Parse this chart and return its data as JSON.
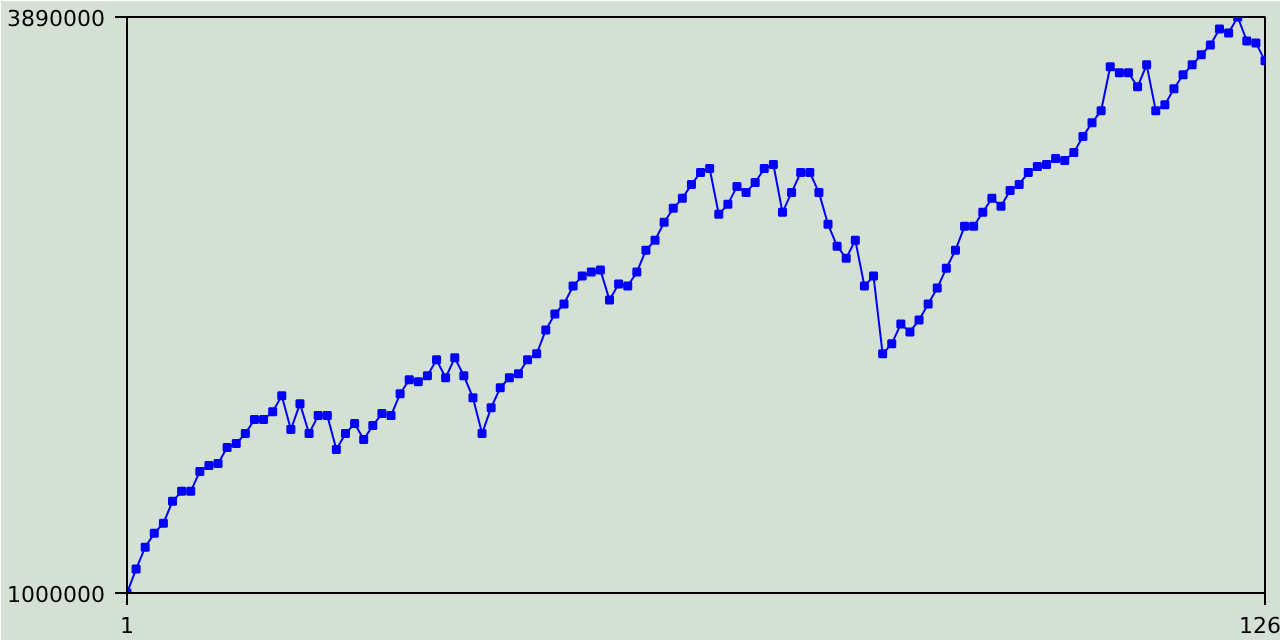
{
  "chart_data": {
    "type": "line",
    "marker": "square",
    "line_style": "solid",
    "x": [
      1,
      2,
      3,
      4,
      5,
      6,
      7,
      8,
      9,
      10,
      11,
      12,
      13,
      14,
      15,
      16,
      17,
      18,
      19,
      20,
      21,
      22,
      23,
      24,
      25,
      26,
      27,
      28,
      29,
      30,
      31,
      32,
      33,
      34,
      35,
      36,
      37,
      38,
      39,
      40,
      41,
      42,
      43,
      44,
      45,
      46,
      47,
      48,
      49,
      50,
      51,
      52,
      53,
      54,
      55,
      56,
      57,
      58,
      59,
      60,
      61,
      62,
      63,
      64,
      65,
      66,
      67,
      68,
      69,
      70,
      71,
      72,
      73,
      74,
      75,
      76,
      77,
      78,
      79,
      80,
      81,
      82,
      83,
      84,
      85,
      86,
      87,
      88,
      89,
      90,
      91,
      92,
      93,
      94,
      95,
      96,
      97,
      98,
      99,
      100,
      101,
      102,
      103,
      104,
      105,
      106,
      107,
      108,
      109,
      110,
      111,
      112,
      113,
      114,
      115,
      116,
      117,
      118,
      119,
      120,
      121,
      122,
      123,
      124,
      125,
      126
    ],
    "series": [
      {
        "color": "#0000ff",
        "values": [
          1000000,
          1120000,
          1230000,
          1300000,
          1350000,
          1460000,
          1510000,
          1510000,
          1610000,
          1640000,
          1650000,
          1730000,
          1750000,
          1800000,
          1870000,
          1870000,
          1910000,
          1990000,
          1820000,
          1950000,
          1800000,
          1890000,
          1890000,
          1720000,
          1800000,
          1850000,
          1770000,
          1840000,
          1900000,
          1890000,
          2000000,
          2070000,
          2060000,
          2090000,
          2170000,
          2080000,
          2180000,
          2090000,
          1980000,
          1800000,
          1930000,
          2030000,
          2080000,
          2100000,
          2170000,
          2200000,
          2320000,
          2400000,
          2450000,
          2540000,
          2590000,
          2610000,
          2620000,
          2470000,
          2550000,
          2540000,
          2610000,
          2720000,
          2770000,
          2860000,
          2930000,
          2980000,
          3050000,
          3110000,
          3130000,
          2900000,
          2950000,
          3040000,
          3010000,
          3060000,
          3130000,
          3150000,
          2910000,
          3010000,
          3110000,
          3110000,
          3010000,
          2850000,
          2740000,
          2680000,
          2770000,
          2540000,
          2590000,
          2200000,
          2250000,
          2350000,
          2310000,
          2370000,
          2450000,
          2530000,
          2630000,
          2720000,
          2840000,
          2840000,
          2910000,
          2980000,
          2940000,
          3020000,
          3050000,
          3110000,
          3140000,
          3150000,
          3180000,
          3170000,
          3210000,
          3290000,
          3360000,
          3420000,
          3640000,
          3610000,
          3610000,
          3540000,
          3650000,
          3420000,
          3450000,
          3530000,
          3600000,
          3650000,
          3700000,
          3750000,
          3830000,
          3810000,
          3890000,
          3770000,
          3760000,
          3670000
        ]
      }
    ],
    "xlim": [
      1,
      126
    ],
    "ylim": [
      1000000,
      3890000
    ],
    "xticks": [
      1,
      126
    ],
    "yticks": [
      1000000,
      3890000
    ]
  }
}
